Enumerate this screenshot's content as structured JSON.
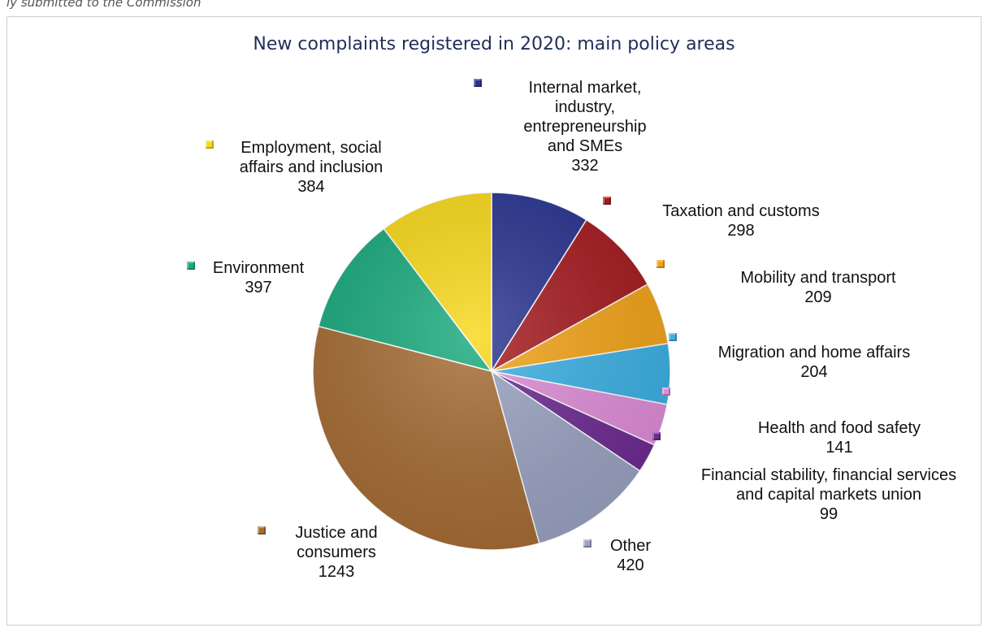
{
  "top_caption": "ly submitted to the Commission",
  "chart_data": {
    "type": "pie",
    "title": "New complaints registered in 2020: main policy areas",
    "slices": [
      {
        "label": "Internal market, industry, entrepreneurship and SMEs",
        "lines": [
          "Internal market,",
          "industry,",
          "entrepreneurship",
          "and SMEs"
        ],
        "value": 332,
        "color": "#2a3590"
      },
      {
        "label": "Taxation and customs",
        "lines": [
          "Taxation and customs"
        ],
        "value": 298,
        "color": "#a51c20"
      },
      {
        "label": "Mobility and transport",
        "lines": [
          "Mobility and transport"
        ],
        "value": 209,
        "color": "#f2a41a"
      },
      {
        "label": "Migration and home affairs",
        "lines": [
          "Migration and home affairs"
        ],
        "value": 204,
        "color": "#3db1e4"
      },
      {
        "label": "Health and food safety",
        "lines": [
          "Health and food safety"
        ],
        "value": 141,
        "color": "#df8ed8"
      },
      {
        "label": "Financial stability, financial services and capital markets union",
        "lines": [
          "Financial stability, financial services",
          "and capital markets union"
        ],
        "value": 99,
        "color": "#6e2c92"
      },
      {
        "label": "Other",
        "lines": [
          "Other"
        ],
        "value": 420,
        "color": "#9aa3c2"
      },
      {
        "label": "Justice and consumers",
        "lines": [
          "Justice and",
          "consumers"
        ],
        "value": 1243,
        "color": "#a66d35"
      },
      {
        "label": "Environment",
        "lines": [
          "Environment"
        ],
        "value": 397,
        "color": "#1aaa7e"
      },
      {
        "label": "Employment, social affairs and inclusion",
        "lines": [
          "Employment, social",
          "affairs and inclusion"
        ],
        "value": 384,
        "color": "#f8d81b"
      }
    ]
  }
}
